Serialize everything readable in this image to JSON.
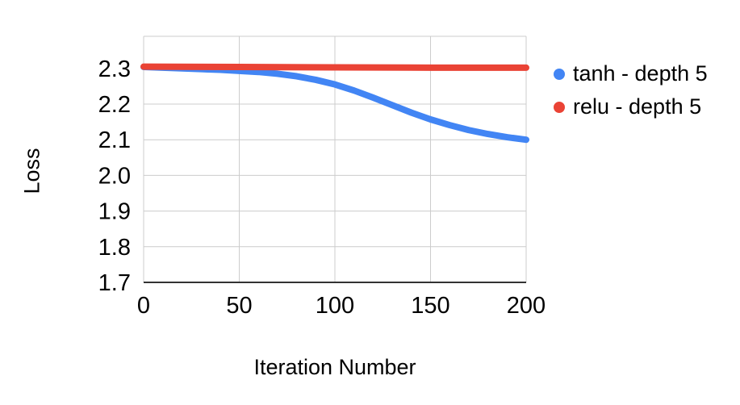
{
  "chart_data": {
    "type": "line",
    "title": "",
    "xlabel": "Iteration Number",
    "ylabel": "Loss",
    "xlim": [
      0,
      200
    ],
    "ylim": [
      1.7,
      2.39
    ],
    "x_ticks": [
      0,
      50,
      100,
      150,
      200
    ],
    "y_ticks": [
      1.7,
      1.8,
      1.9,
      2.0,
      2.1,
      2.2,
      2.3
    ],
    "grid": true,
    "legend_position": "right",
    "grid_color": "#cccccc",
    "axis_line_color": "#333333",
    "series": [
      {
        "name": "tanh - depth 5",
        "color": "#4285F4",
        "x": [
          0,
          10,
          20,
          30,
          40,
          50,
          60,
          70,
          80,
          90,
          100,
          110,
          120,
          130,
          140,
          150,
          160,
          170,
          180,
          190,
          200
        ],
        "y": [
          2.304,
          2.302,
          2.3,
          2.298,
          2.296,
          2.293,
          2.29,
          2.285,
          2.278,
          2.268,
          2.255,
          2.238,
          2.218,
          2.197,
          2.176,
          2.157,
          2.141,
          2.127,
          2.116,
          2.107,
          2.1
        ]
      },
      {
        "name": "relu - depth 5",
        "color": "#EA4335",
        "x": [
          0,
          50,
          100,
          150,
          200
        ],
        "y": [
          2.305,
          2.304,
          2.303,
          2.302,
          2.302
        ]
      }
    ]
  }
}
